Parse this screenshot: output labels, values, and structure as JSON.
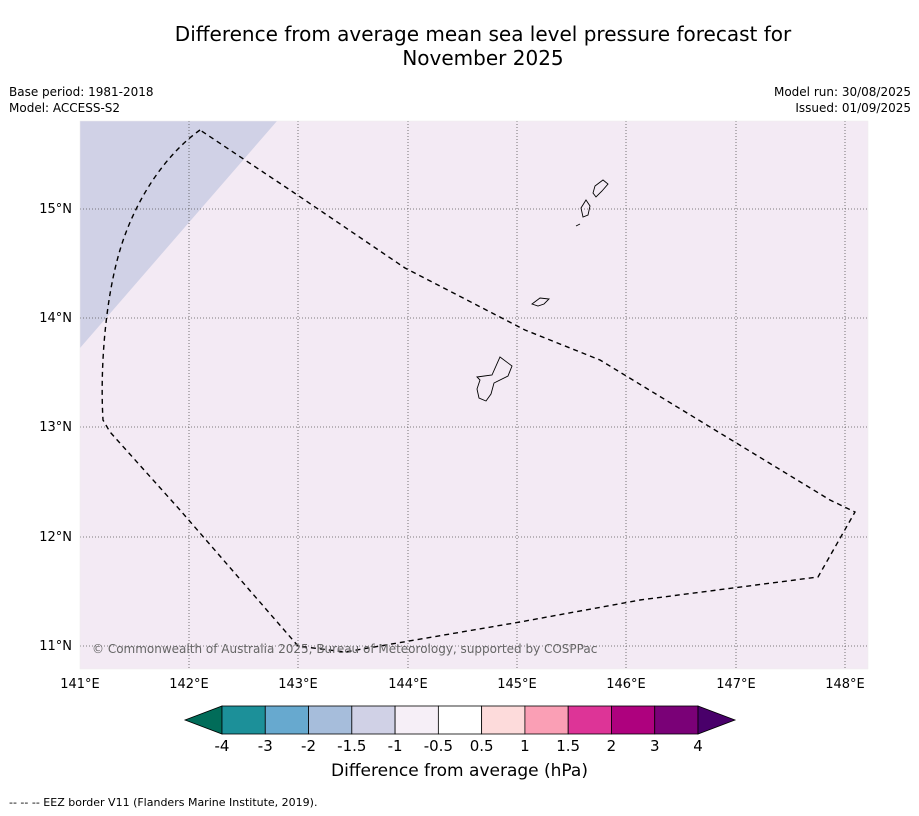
{
  "title_line1": "Difference from average mean sea level pressure forecast for",
  "title_line2": "November 2025",
  "meta": {
    "base_period": "Base period: 1981-2018",
    "model": "Model: ACCESS-S2",
    "model_run": "Model run: 30/08/2025",
    "issued": "Issued: 01/09/2025"
  },
  "map": {
    "lon_labels": [
      "141°E",
      "142°E",
      "143°E",
      "144°E",
      "145°E",
      "146°E",
      "147°E",
      "148°E"
    ],
    "lat_labels": [
      "15°N",
      "14°N",
      "13°N",
      "12°N",
      "11°N"
    ],
    "copyright": "© Commonwealth of Australia 2025, Bureau of Meteorology, supported by COSPPac",
    "colors": {
      "background_band": "#f3eaf4",
      "negative_band": "#d0d1e6"
    }
  },
  "colorbar": {
    "tick_labels": [
      "-4",
      "-3",
      "-2",
      "-1.5",
      "-1",
      "-0.5",
      "0.5",
      "1",
      "1.5",
      "2",
      "3",
      "4"
    ],
    "colors": [
      "#016c59",
      "#1c9099",
      "#67a9cf",
      "#a6bddb",
      "#d0d1e6",
      "#f6eff7",
      "#ffffff",
      "#fddbdb",
      "#fa9fb5",
      "#dd3497",
      "#ae017e",
      "#7a0177",
      "#49006a"
    ],
    "label": "Difference from average (hPa)"
  },
  "footnote": "--  --  -- EEZ border V11 (Flanders Marine Institute, 2019)."
}
